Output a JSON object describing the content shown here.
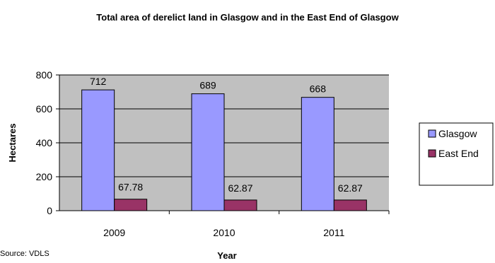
{
  "chart_data": {
    "type": "bar",
    "title": "Total area of derelict land in Glasgow and in the East End of Glasgow",
    "xlabel": "Year",
    "ylabel": "Hectares",
    "categories": [
      "2009",
      "2010",
      "2011"
    ],
    "series": [
      {
        "name": "Glasgow",
        "values": [
          712,
          689,
          668
        ],
        "labels": [
          "712",
          "689",
          "668"
        ],
        "color": "#9999FF"
      },
      {
        "name": "East End",
        "values": [
          67.78,
          62.87,
          62.87
        ],
        "labels": [
          "67.78",
          "62.87",
          "62.87"
        ],
        "color": "#993366"
      }
    ],
    "ylim": [
      0,
      800
    ],
    "yticks": [
      0,
      200,
      400,
      600,
      800
    ],
    "grid": true,
    "plot_background": "#C0C0C0",
    "legend": "right"
  },
  "source_note": "Source: VDLS"
}
